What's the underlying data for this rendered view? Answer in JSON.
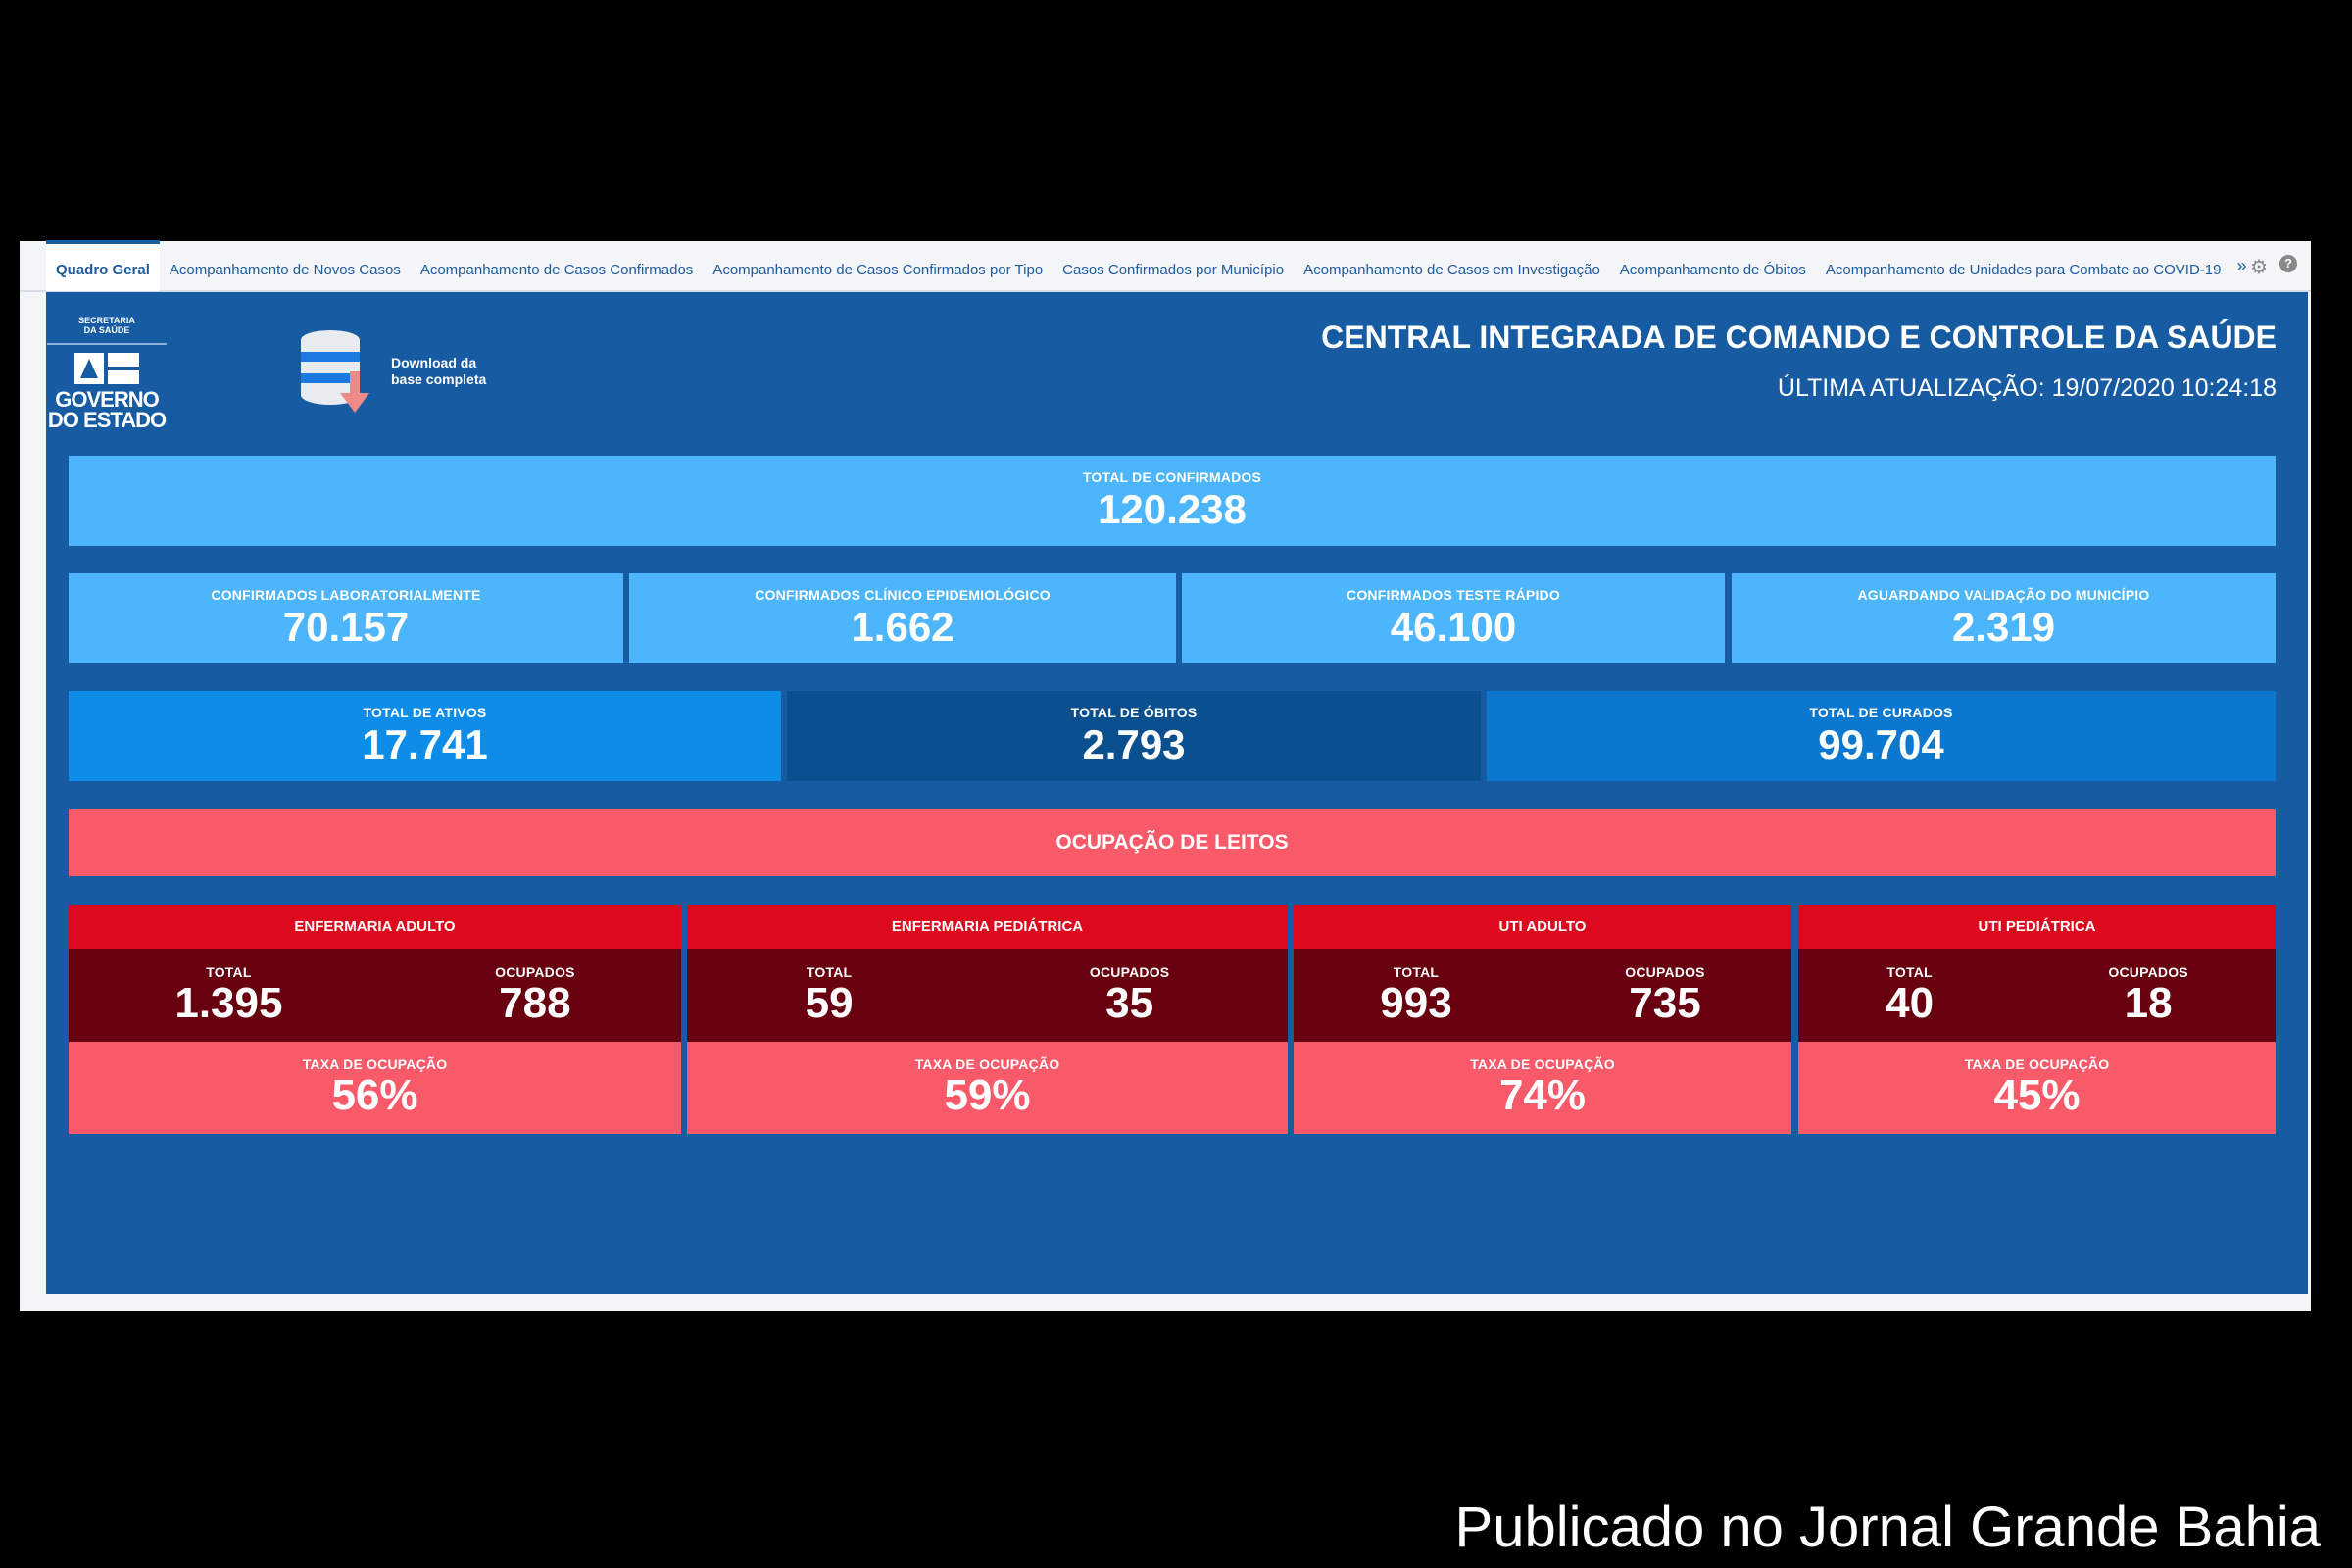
{
  "tabs": [
    "Quadro Geral",
    "Acompanhamento de Novos Casos",
    "Acompanhamento de Casos Confirmados",
    "Acompanhamento de Casos Confirmados por Tipo",
    "Casos Confirmados por Município",
    "Acompanhamento de Casos em Investigação",
    "Acompanhamento de Óbitos",
    "Acompanhamento de Unidades para Combate ao COVID-19"
  ],
  "tab_more": "»",
  "icons": {
    "settings": "gear-icon",
    "help": "help-icon"
  },
  "logo": {
    "line1": "SECRETARIA",
    "line2": "DA SAÚDE",
    "line3": "GOVERNO",
    "line4": "DO ESTADO"
  },
  "download": {
    "line1": "Download da",
    "line2": "base completa"
  },
  "header": {
    "title": "CENTRAL INTEGRADA DE COMANDO E CONTROLE DA SAÚDE",
    "updated": "ÚLTIMA ATUALIZAÇÃO: 19/07/2020 10:24:18"
  },
  "total_confirmados": {
    "label": "TOTAL DE CONFIRMADOS",
    "value": "120.238"
  },
  "confirmados": [
    {
      "label": "CONFIRMADOS LABORATORIALMENTE",
      "value": "70.157"
    },
    {
      "label": "CONFIRMADOS CLÍNICO EPIDEMIOLÓGICO",
      "value": "1.662"
    },
    {
      "label": "CONFIRMADOS TESTE RÁPIDO",
      "value": "46.100"
    },
    {
      "label": "AGUARDANDO VALIDAÇÃO DO MUNICÍPIO",
      "value": "2.319"
    }
  ],
  "status": [
    {
      "label": "TOTAL DE ATIVOS",
      "value": "17.741"
    },
    {
      "label": "TOTAL DE ÓBITOS",
      "value": "2.793"
    },
    {
      "label": "TOTAL DE CURADOS",
      "value": "99.704"
    }
  ],
  "ocupacao_title": "OCUPAÇÃO DE LEITOS",
  "beds": [
    {
      "name": "ENFERMARIA ADULTO",
      "total_label": "TOTAL",
      "total": "1.395",
      "ocupados_label": "OCUPADOS",
      "ocupados": "788",
      "taxa_label": "TAXA DE OCUPAÇÃO",
      "taxa": "56%"
    },
    {
      "name": "ENFERMARIA PEDIÁTRICA",
      "total_label": "TOTAL",
      "total": "59",
      "ocupados_label": "OCUPADOS",
      "ocupados": "35",
      "taxa_label": "TAXA DE OCUPAÇÃO",
      "taxa": "59%"
    },
    {
      "name": "UTI ADULTO",
      "total_label": "TOTAL",
      "total": "993",
      "ocupados_label": "OCUPADOS",
      "ocupados": "735",
      "taxa_label": "TAXA DE OCUPAÇÃO",
      "taxa": "74%"
    },
    {
      "name": "UTI PEDIÁTRICA",
      "total_label": "TOTAL",
      "total": "40",
      "ocupados_label": "OCUPADOS",
      "ocupados": "18",
      "taxa_label": "TAXA DE OCUPAÇÃO",
      "taxa": "45%"
    }
  ],
  "watermark": "Publicado no Jornal Grande Bahia",
  "colors": {
    "panel": "#175ba3",
    "light_blue": "#4db5fb",
    "ativos": "#0d8ce8",
    "obitos": "#0a4f8e",
    "curados": "#0b78d0",
    "ocupacao": "#f95a6a",
    "bed_header": "#dd0a1e",
    "bed_dark": "#690010"
  }
}
